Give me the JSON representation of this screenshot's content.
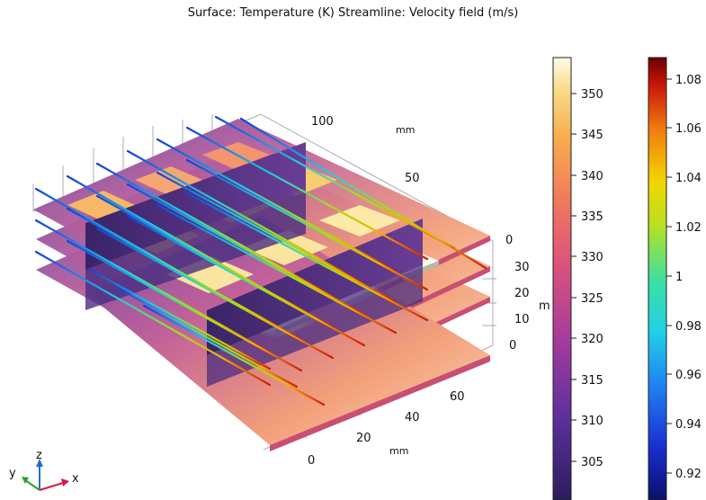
{
  "title": "Surface: Temperature (K)  Streamline: Velocity field (m/s)",
  "chart_data": {
    "type": "3d-surface-streamline",
    "surface": {
      "quantity": "Temperature",
      "unit": "K"
    },
    "streamline": {
      "quantity": "Velocity field",
      "unit": "m/s"
    },
    "axes": {
      "x": {
        "unit": "mm",
        "ticks": [
          "0",
          "20",
          "40",
          "60"
        ]
      },
      "y": {
        "unit": "mm",
        "ticks": [
          "0",
          "50",
          "100"
        ]
      },
      "z": {
        "unit": "mm",
        "ticks": [
          "0",
          "10",
          "20",
          "30"
        ],
        "unit_shown": "m"
      }
    },
    "colorbars": [
      {
        "name": "Temperature",
        "range": [
          302,
          354
        ],
        "ticks": [
          "305",
          "310",
          "315",
          "320",
          "325",
          "330",
          "335",
          "340",
          "345",
          "350"
        ],
        "colormap": "thermal"
      },
      {
        "name": "Velocity",
        "range": [
          0.905,
          1.088
        ],
        "ticks": [
          "0.92",
          "0.94",
          "0.96",
          "0.98",
          "1",
          "1.02",
          "1.04",
          "1.06",
          "1.08"
        ],
        "colormap": "rainbow"
      }
    ],
    "triad": [
      "x",
      "y",
      "z"
    ]
  }
}
